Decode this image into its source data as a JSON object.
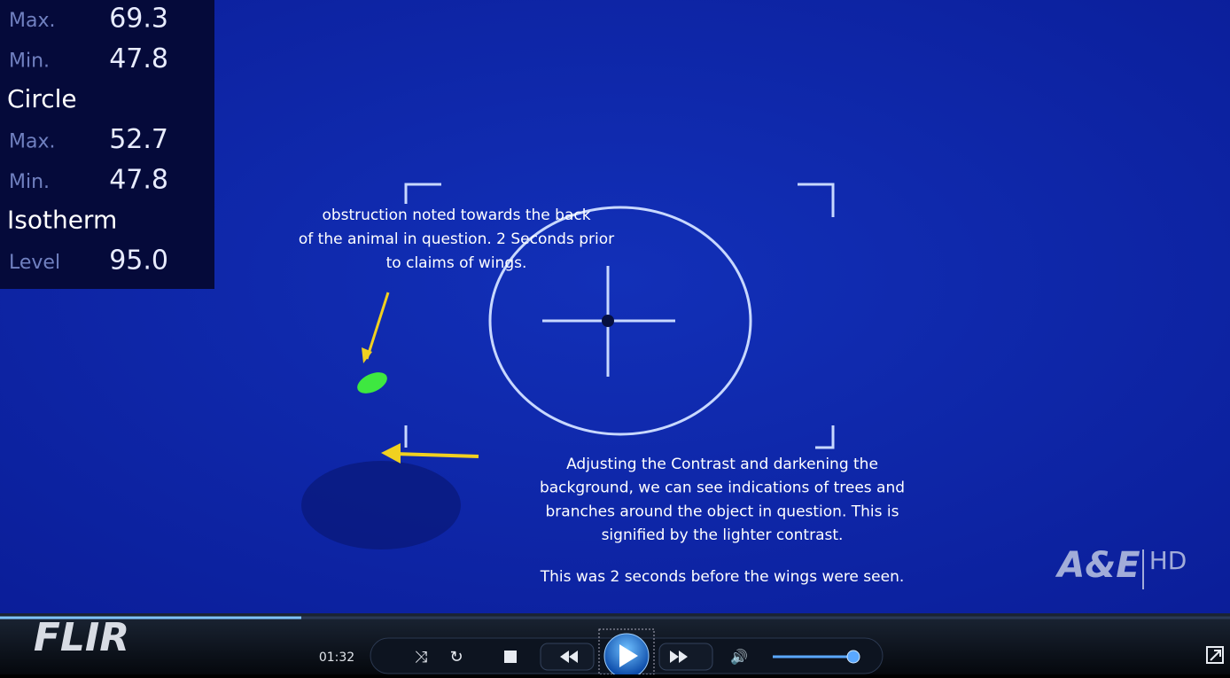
{
  "overlay": {
    "rows": [
      {
        "label": "Max.",
        "value": "69.3"
      },
      {
        "label": "Min.",
        "value": "47.8"
      },
      {
        "heading": "Circle"
      },
      {
        "label": "Max.",
        "value": "52.7"
      },
      {
        "label": "Min.",
        "value": "47.8"
      },
      {
        "heading": "Isotherm"
      },
      {
        "label": "Level",
        "value": "95.0"
      }
    ]
  },
  "annotations": [
    {
      "lines": [
        "obstruction noted towards the back",
        "of the animal in question. 2 Seconds prior",
        "to claims of wings."
      ]
    },
    {
      "lines": [
        "Adjusting the Contrast and darkening the",
        "background, we can see indications of trees and",
        "branches around the object in question. This is",
        "signified by the lighter contrast."
      ],
      "footer": "This was 2 seconds before the wings were seen."
    }
  ],
  "logos": {
    "camera": "FLIR",
    "channel": "A&E",
    "hd": "HD"
  },
  "player": {
    "time": "01:32"
  }
}
